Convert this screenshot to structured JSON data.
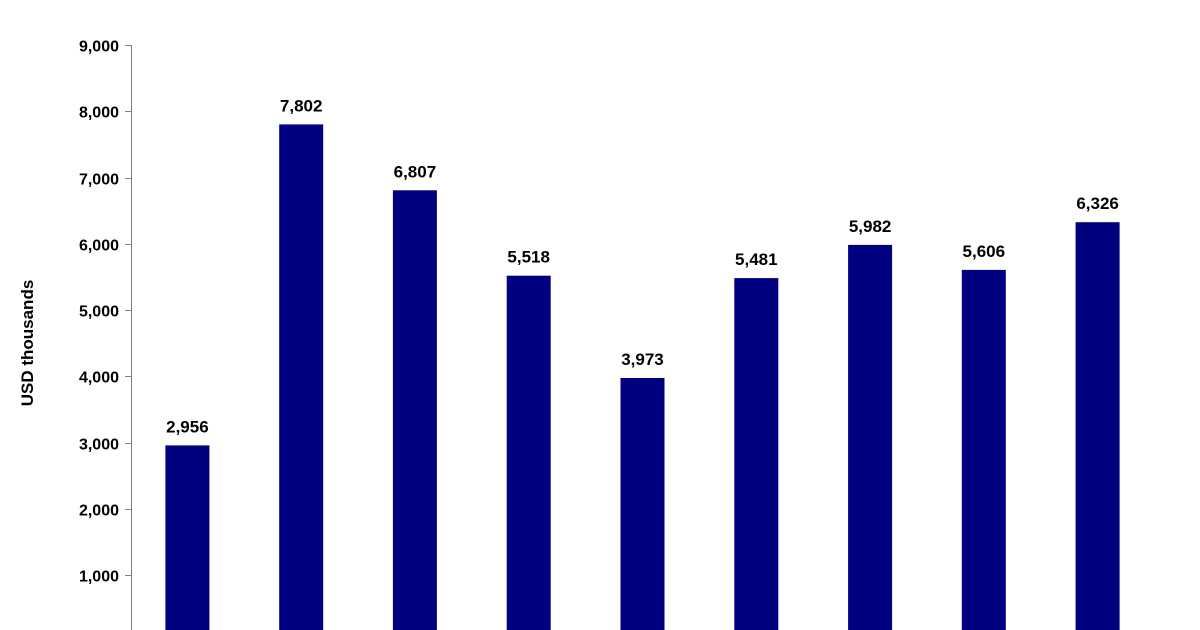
{
  "chart_data": {
    "type": "bar",
    "title": "",
    "xlabel": "",
    "ylabel": "USD thousands",
    "ylim": [
      0,
      9000
    ],
    "yticks": [
      1000,
      2000,
      3000,
      4000,
      5000,
      6000,
      7000,
      8000,
      9000
    ],
    "ytick_labels": [
      "1,000",
      "2,000",
      "3,000",
      "4,000",
      "5,000",
      "6,000",
      "7,000",
      "8,000",
      "9,000"
    ],
    "grid": false,
    "legend": "none",
    "bar_color": "#000080",
    "series": [
      {
        "values": [
          2956,
          7802,
          6807,
          5518,
          3973,
          5481,
          5982,
          5606,
          6326
        ],
        "labels": [
          "2,956",
          "7,802",
          "6,807",
          "5,518",
          "3,973",
          "5,481",
          "5,982",
          "5,606",
          "6,326"
        ]
      }
    ]
  }
}
